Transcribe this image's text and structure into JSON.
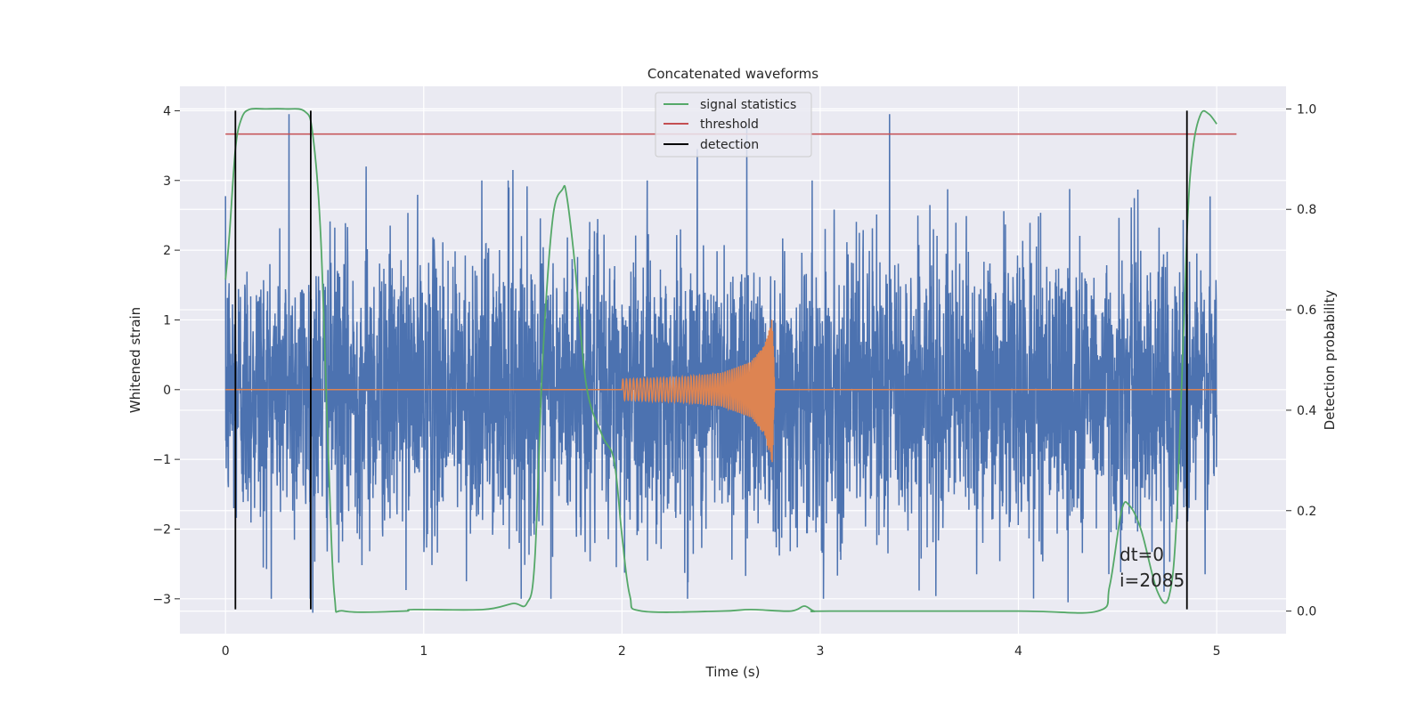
{
  "chart_data": {
    "type": "line",
    "title": "Concatenated waveforms",
    "xlabel": "Time (s)",
    "ylabel": "Whitened strain",
    "y2label": "Detection probability",
    "xlim": [
      -0.23,
      5.35
    ],
    "ylim": [
      -3.5,
      4.35
    ],
    "y2lim": [
      -0.045,
      1.045
    ],
    "xticks": [
      "0",
      "1",
      "2",
      "3",
      "4",
      "5"
    ],
    "yticks": [
      "−3",
      "−2",
      "−1",
      "0",
      "1",
      "2",
      "3",
      "4"
    ],
    "y2ticks": [
      "0.0",
      "0.2",
      "0.4",
      "0.6",
      "0.8",
      "1.0"
    ],
    "grid": true,
    "legend": {
      "placement": "upper center",
      "entries": [
        {
          "label": "signal statistics",
          "color": "#55a868"
        },
        {
          "label": "threshold",
          "color": "#c44e52"
        },
        {
          "label": "detection",
          "color": "#000000"
        }
      ]
    },
    "series": [
      {
        "name": "whitened strain",
        "axis": "left",
        "color": "#4c72b0",
        "x_range": [
          0,
          5.0
        ],
        "envelope_sigma": 1.0,
        "peaks": [
          {
            "x": 0.32,
            "y": 3.95
          },
          {
            "x": 0.44,
            "y": -3.2
          },
          {
            "x": 3.35,
            "y": 3.95
          },
          {
            "x": 2.38,
            "y": 3.45
          },
          {
            "x": 2.63,
            "y": 3.8
          },
          {
            "x": 0.71,
            "y": 3.2
          },
          {
            "x": 1.45,
            "y": 3.15
          },
          {
            "x": 4.25,
            "y": -3.05
          },
          {
            "x": 0.19,
            "y": -2.55
          },
          {
            "x": 1.43,
            "y": 2.9
          }
        ]
      },
      {
        "name": "injected waveform",
        "axis": "left",
        "color": "#dd8452",
        "x": [
          2.0,
          2.3,
          2.5,
          2.65,
          2.72,
          2.76,
          2.77
        ],
        "amplitude": [
          0.15,
          0.18,
          0.24,
          0.4,
          0.65,
          1.1,
          0.0
        ]
      },
      {
        "name": "signal statistics",
        "axis": "right",
        "color": "#55a868",
        "x": [
          0,
          0.02,
          0.05,
          0.08,
          0.12,
          0.2,
          0.3,
          0.4,
          0.44,
          0.48,
          0.52,
          0.55,
          0.6,
          0.9,
          0.95,
          1.3,
          1.45,
          1.52,
          1.56,
          1.6,
          1.65,
          1.7,
          1.72,
          1.76,
          1.82,
          1.9,
          1.96,
          2.0,
          2.04,
          2.1,
          2.5,
          2.65,
          2.85,
          2.92,
          2.97,
          3.05,
          4.0,
          4.4,
          4.46,
          4.52,
          4.56,
          4.62,
          4.7,
          4.76,
          4.8,
          4.85,
          4.88,
          4.92,
          4.96,
          5.0
        ],
        "y": [
          0.66,
          0.75,
          0.92,
          0.98,
          0.999,
          1.0,
          1.0,
          0.995,
          0.95,
          0.75,
          0.3,
          0.03,
          0.0,
          0.0,
          0.003,
          0.003,
          0.015,
          0.015,
          0.1,
          0.5,
          0.78,
          0.84,
          0.83,
          0.7,
          0.45,
          0.35,
          0.3,
          0.15,
          0.03,
          0.0,
          0.0,
          0.003,
          0.0,
          0.01,
          0.0,
          0.0,
          0.0,
          0.0,
          0.05,
          0.2,
          0.21,
          0.16,
          0.04,
          0.03,
          0.2,
          0.75,
          0.92,
          0.99,
          0.99,
          0.97
        ]
      },
      {
        "name": "threshold",
        "axis": "right",
        "color": "#c44e52",
        "x": [
          0,
          5.1
        ],
        "y": [
          0.95,
          0.95
        ]
      }
    ],
    "detections": {
      "color": "#000000",
      "x": [
        0.05,
        0.43,
        4.85
      ],
      "ylim": [
        -3.15,
        4.0
      ]
    },
    "annotation": {
      "lines": [
        "dt=0",
        "i=2085"
      ],
      "x": 4.5,
      "y": -2.4
    }
  }
}
